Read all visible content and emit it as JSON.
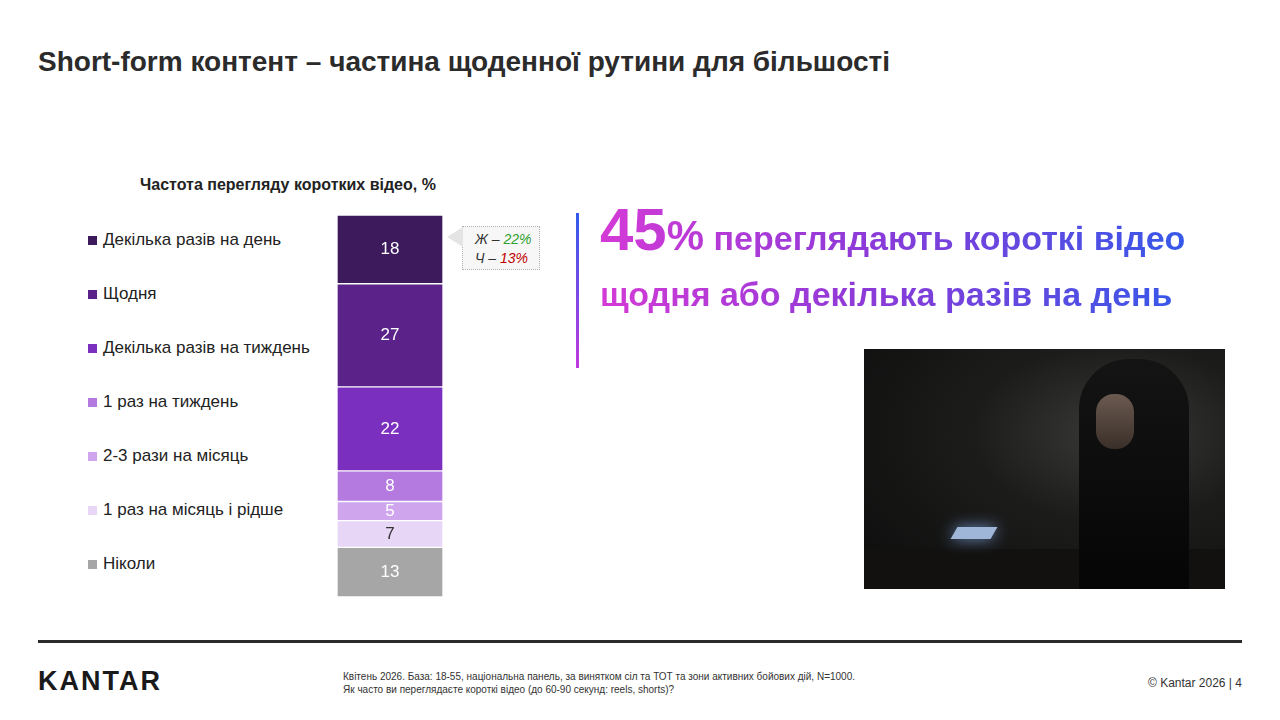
{
  "header": {
    "title": "Short-form контент – частина щоденної рутини для більшості"
  },
  "chart_data": {
    "type": "bar",
    "title": "Частота перегляду коротких відео, %",
    "categories": [
      null
    ],
    "stacked": true,
    "data_labels": true,
    "tick_labels": false,
    "legend": "left",
    "ylim": [
      0,
      100
    ],
    "series": [
      {
        "name": "Декілька разів на день",
        "color": "#3d1a5c",
        "values": [
          18
        ]
      },
      {
        "name": "Щодня",
        "color": "#5b2389",
        "values": [
          27
        ]
      },
      {
        "name": "Декілька разів на тиждень",
        "color": "#7b2fbf",
        "values": [
          22
        ]
      },
      {
        "name": "1 раз на тиждень",
        "color": "#b47ae0",
        "values": [
          8
        ]
      },
      {
        "name": "2-3 рази на місяць",
        "color": "#cfa6ee",
        "values": [
          5
        ]
      },
      {
        "name": "1 раз на місяць і рідше",
        "color": "#e8d6f7",
        "values": [
          7
        ]
      },
      {
        "name": "Ніколи",
        "color": "#a6a6a6",
        "values": [
          13
        ]
      }
    ],
    "annotations": [
      {
        "text": "Ж – 22%",
        "color": "#2ca02c"
      },
      {
        "text": "Ч – 13%",
        "color": "#c00000"
      }
    ]
  },
  "highlight": {
    "number": "45%",
    "text": "переглядають короткі відео щодня або декілька разів на день"
  },
  "footer": {
    "logo": "KANTAR",
    "notes": [
      "Квітень 2026. База: 18-55, національна панель, за винятком сіл та ТОТ та зони активних бойових дій, N=1000.",
      "Як часто ви переглядаєте короткі відео (до 60-90 секунд: reels, shorts)?"
    ],
    "copyright": "© Kantar 2026 | 4"
  }
}
